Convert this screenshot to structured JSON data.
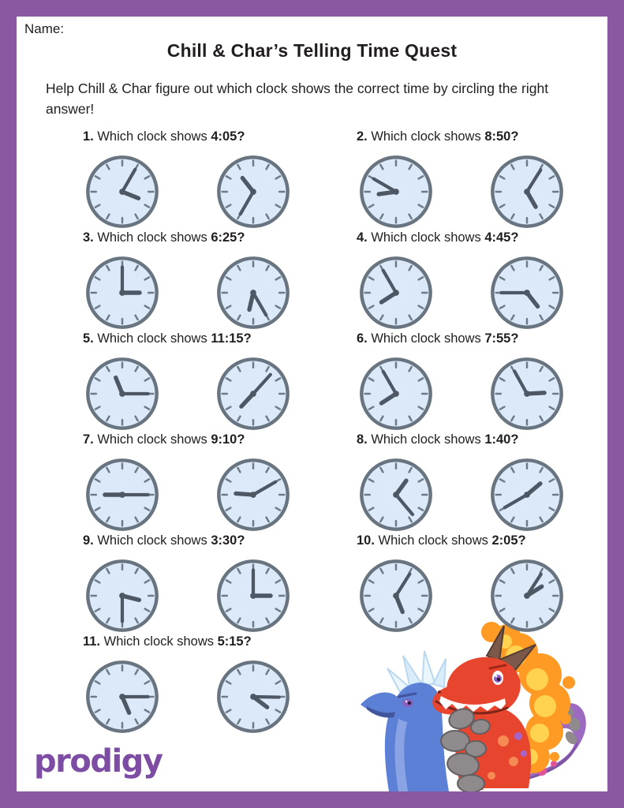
{
  "page": {
    "name_label": "Name:",
    "title": "Chill & Char’s Telling Time Quest",
    "instructions": "Help Chill & Char figure out which clock shows the correct time by circling the right answer!"
  },
  "footer": {
    "logo_text": "prodigy"
  },
  "mascot": {
    "icon": "chill-and-char-dragons"
  },
  "colors": {
    "frame": "#8a57a1",
    "logo": "#7c4da3",
    "clock_face": "#dce9f8",
    "clock_rim": "#68747f",
    "clock_tick": "#6d7a88",
    "clock_hand": "#4d5864",
    "text": "#221e20"
  },
  "questions": [
    {
      "number": "1.",
      "prompt": "Which clock shows",
      "time": "4:05?",
      "clocks": [
        {
          "hour_angle": 112,
          "minute_angle": 30,
          "shows": "~4:05"
        },
        {
          "hour_angle": 322,
          "minute_angle": 210,
          "shows": "~10:35"
        }
      ]
    },
    {
      "number": "2.",
      "prompt": "Which clock shows",
      "time": "8:50?",
      "clocks": [
        {
          "hour_angle": 262,
          "minute_angle": 300,
          "shows": "8:50"
        },
        {
          "hour_angle": 150,
          "minute_angle": 32,
          "shows": "~5:05"
        }
      ]
    },
    {
      "number": "3.",
      "prompt": "Which clock shows",
      "time": "6:25?",
      "clocks": [
        {
          "hour_angle": 90,
          "minute_angle": 0,
          "shows": "3:00"
        },
        {
          "hour_angle": 193,
          "minute_angle": 150,
          "shows": "6:25"
        }
      ]
    },
    {
      "number": "4.",
      "prompt": "Which clock shows",
      "time": "4:45?",
      "clocks": [
        {
          "hour_angle": 237,
          "minute_angle": 330,
          "shows": "7:55"
        },
        {
          "hour_angle": 142,
          "minute_angle": 270,
          "shows": "4:45"
        }
      ]
    },
    {
      "number": "5.",
      "prompt": "Which clock shows",
      "time": "11:15?",
      "clocks": [
        {
          "hour_angle": 338,
          "minute_angle": 90,
          "shows": "11:15"
        },
        {
          "hour_angle": 223,
          "minute_angle": 42,
          "shows": "~7:07"
        }
      ]
    },
    {
      "number": "6.",
      "prompt": "Which clock shows",
      "time": "7:55?",
      "clocks": [
        {
          "hour_angle": 237,
          "minute_angle": 330,
          "shows": "7:55"
        },
        {
          "hour_angle": 87,
          "minute_angle": 331,
          "shows": "~2:55"
        }
      ]
    },
    {
      "number": "7.",
      "prompt": "Which clock shows",
      "time": "9:10?",
      "clocks": [
        {
          "hour_angle": 270,
          "minute_angle": 90,
          "shows": "9:15"
        },
        {
          "hour_angle": 274,
          "minute_angle": 60,
          "shows": "9:10"
        }
      ]
    },
    {
      "number": "8.",
      "prompt": "Which clock shows",
      "time": "1:40?",
      "clocks": [
        {
          "hour_angle": 36,
          "minute_angle": 140,
          "shows": "~1:22"
        },
        {
          "hour_angle": 50,
          "minute_angle": 240,
          "shows": "1:40"
        }
      ]
    },
    {
      "number": "9.",
      "prompt": "Which clock shows",
      "time": "3:30?",
      "clocks": [
        {
          "hour_angle": 104,
          "minute_angle": 180,
          "shows": "3:30"
        },
        {
          "hour_angle": 90,
          "minute_angle": 0,
          "shows": "3:00"
        }
      ]
    },
    {
      "number": "10.",
      "prompt": "Which clock shows",
      "time": "2:05?",
      "clocks": [
        {
          "hour_angle": 158,
          "minute_angle": 32,
          "shows": "~5:05"
        },
        {
          "hour_angle": 58,
          "minute_angle": 33,
          "shows": "2:05"
        }
      ]
    },
    {
      "number": "11.",
      "prompt": "Which clock shows",
      "time": "5:15?",
      "clocks": [
        {
          "hour_angle": 157,
          "minute_angle": 90,
          "shows": "5:15"
        },
        {
          "hour_angle": 127,
          "minute_angle": 91,
          "shows": "~4:15"
        }
      ]
    }
  ]
}
